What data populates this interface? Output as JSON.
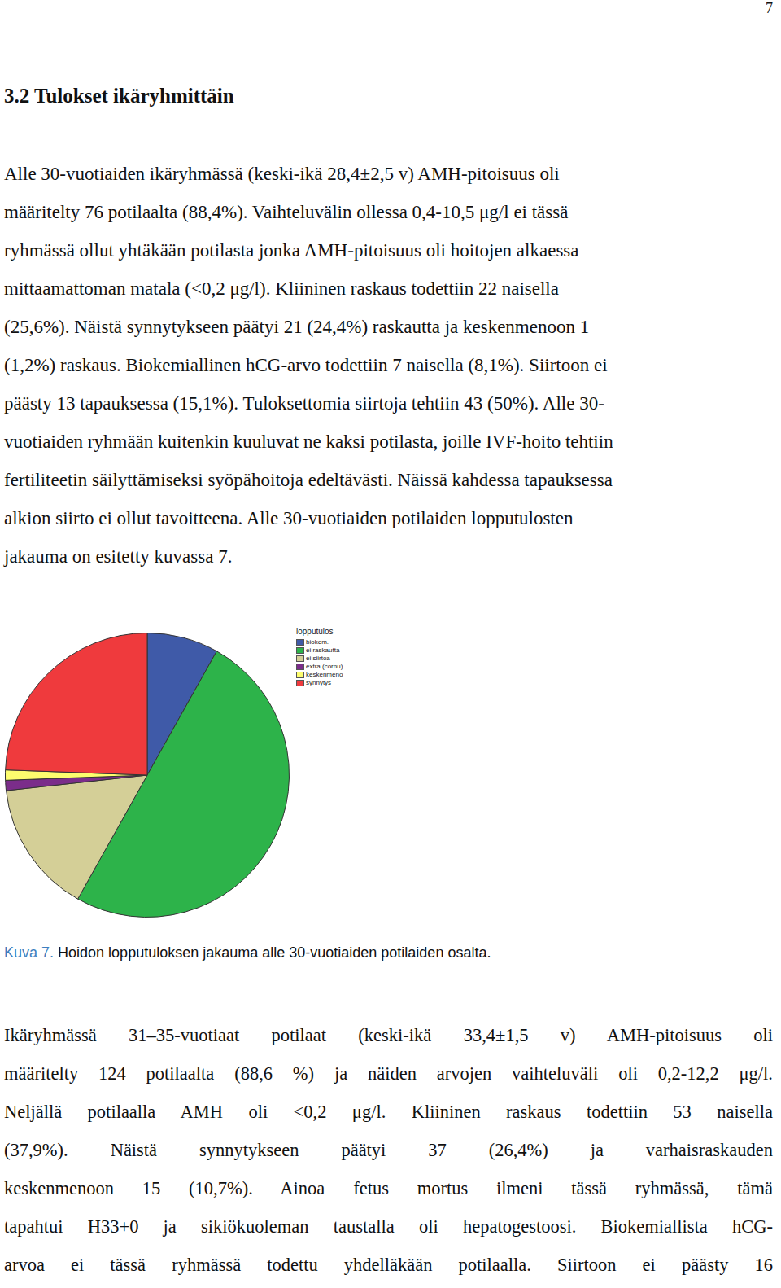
{
  "page_number": "7",
  "heading": "3.2 Tulokset ikäryhmittäin",
  "paragraph_1": [
    "Alle 30-vuotiaiden ikäryhmässä (keski-ikä 28,4±2,5 v) AMH-pitoisuus oli",
    "määritelty 76 potilaalta (88,4%). Vaihteluvälin ollessa 0,4-10,5 μg/l ei tässä",
    "ryhmässä ollut yhtäkään potilasta jonka AMH-pitoisuus oli hoitojen alkaessa",
    "mittaamattoman matala (<0,2 μg/l). Kliininen raskaus todettiin 22 naisella",
    "(25,6%). Näistä synnytykseen päätyi 21 (24,4%) raskautta ja keskenmenoon 1",
    "(1,2%) raskaus. Biokemiallinen hCG-arvo todettiin 7 naisella (8,1%). Siirtoon ei",
    "päästy 13 tapauksessa (15,1%). Tuloksettomia siirtoja tehtiin 43 (50%).  Alle 30-",
    "vuotiaiden ryhmään kuitenkin kuuluvat ne kaksi potilasta, joille IVF-hoito tehtiin",
    "fertiliteetin säilyttämiseksi syöpähoitoja edeltävästi. Näissä kahdessa tapauksessa",
    "alkion siirto ei ollut tavoitteena. Alle 30-vuotiaiden potilaiden lopputulosten",
    "jakauma on esitetty kuvassa 7."
  ],
  "chart_data": {
    "type": "pie",
    "legend_title": "lopputulos",
    "categories": [
      "biokem.",
      "ei raskautta",
      "ei siirtoa",
      "extra (cornu)",
      "keskenmeno",
      "synnytys"
    ],
    "values": [
      7,
      43,
      13,
      1,
      1,
      21
    ],
    "colors": [
      "#3f5aa8",
      "#2db34a",
      "#d4cf97",
      "#7b2d8a",
      "#fdfd6e",
      "#ef3a3d"
    ],
    "legend": "right"
  },
  "caption": {
    "label": "Kuva 7.",
    "text": "Hoidon lopputuloksen jakauma alle 30-vuotiaiden potilaiden osalta."
  },
  "paragraph_2": [
    "Ikäryhmässä 31–35-vuotiaat potilaat (keski-ikä 33,4±1,5 v) AMH-pitoisuus oli",
    "määritelty 124 potilaalta (88,6 %) ja näiden arvojen vaihteluväli oli 0,2-12,2 μg/l.",
    "Neljällä potilaalla AMH oli <0,2 μg/l. Kliininen raskaus todettiin 53 naisella",
    "(37,9%). Näistä synnytykseen päätyi 37 (26,4%) ja varhaisraskauden",
    "keskenmenoon 15  (10,7%). Ainoa fetus mortus ilmeni tässä ryhmässä, tämä",
    "tapahtui H33+0 ja sikiökuoleman taustalla oli hepatogestoosi. Biokemiallista hCG-",
    "arvoa ei tässä ryhmässä todettu yhdelläkään potilaalla. Siirtoon ei päästy 16"
  ]
}
